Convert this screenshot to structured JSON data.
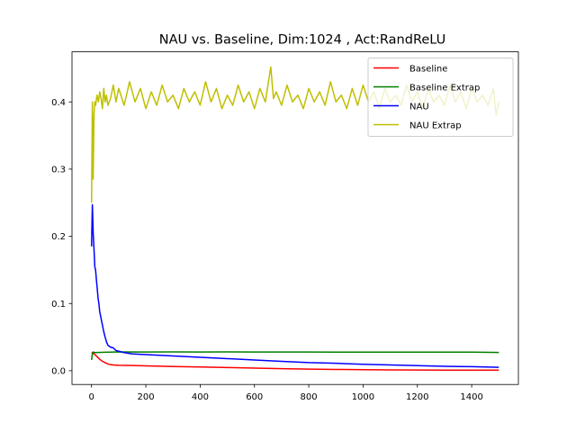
{
  "chart_data": {
    "type": "line",
    "title": "NAU vs. Baseline, Dim:1024 , Act:RandReLU",
    "xlabel": "",
    "ylabel": "",
    "xlim": [
      -72,
      1572
    ],
    "ylim": [
      -0.0205,
      0.4745
    ],
    "x_ticks": [
      0,
      200,
      400,
      600,
      800,
      1000,
      1200,
      1400
    ],
    "y_ticks": [
      0.0,
      0.1,
      0.2,
      0.3,
      0.4
    ],
    "x_tick_labels": [
      "0",
      "200",
      "400",
      "600",
      "800",
      "1000",
      "1200",
      "1400"
    ],
    "y_tick_labels": [
      "0.0",
      "0.1",
      "0.2",
      "0.3",
      "0.4"
    ],
    "grid": false,
    "legend_position": "upper right",
    "series": [
      {
        "name": "Baseline",
        "color": "#ff0000",
        "points": [
          [
            0,
            0.027
          ],
          [
            5,
            0.026
          ],
          [
            10,
            0.025
          ],
          [
            20,
            0.021
          ],
          [
            30,
            0.017
          ],
          [
            40,
            0.014
          ],
          [
            50,
            0.012
          ],
          [
            60,
            0.01
          ],
          [
            70,
            0.009
          ],
          [
            80,
            0.0085
          ],
          [
            100,
            0.008
          ],
          [
            150,
            0.0078
          ],
          [
            200,
            0.0073
          ],
          [
            300,
            0.0063
          ],
          [
            400,
            0.0055
          ],
          [
            500,
            0.0047
          ],
          [
            600,
            0.0038
          ],
          [
            700,
            0.003
          ],
          [
            800,
            0.0024
          ],
          [
            900,
            0.0019
          ],
          [
            1000,
            0.0015
          ],
          [
            1100,
            0.0012
          ],
          [
            1200,
            0.001
          ],
          [
            1300,
            0.0009
          ],
          [
            1400,
            0.0008
          ],
          [
            1500,
            0.0008
          ]
        ]
      },
      {
        "name": "Baseline Extrap",
        "color": "#008000",
        "points": [
          [
            0,
            0.016
          ],
          [
            3,
            0.025
          ],
          [
            6,
            0.028
          ],
          [
            10,
            0.027
          ],
          [
            50,
            0.0275
          ],
          [
            100,
            0.028
          ],
          [
            200,
            0.0278
          ],
          [
            300,
            0.028
          ],
          [
            400,
            0.0278
          ],
          [
            500,
            0.028
          ],
          [
            600,
            0.0278
          ],
          [
            700,
            0.0278
          ],
          [
            800,
            0.0278
          ],
          [
            900,
            0.0277
          ],
          [
            1000,
            0.0276
          ],
          [
            1100,
            0.0276
          ],
          [
            1200,
            0.0276
          ],
          [
            1300,
            0.0276
          ],
          [
            1400,
            0.0276
          ],
          [
            1500,
            0.0272
          ]
        ]
      },
      {
        "name": "NAU",
        "color": "#0000ff",
        "points": [
          [
            0,
            0.185
          ],
          [
            3,
            0.247
          ],
          [
            6,
            0.205
          ],
          [
            9,
            0.181
          ],
          [
            12,
            0.155
          ],
          [
            15,
            0.149
          ],
          [
            18,
            0.135
          ],
          [
            21,
            0.122
          ],
          [
            24,
            0.108
          ],
          [
            27,
            0.1
          ],
          [
            30,
            0.088
          ],
          [
            35,
            0.078
          ],
          [
            40,
            0.068
          ],
          [
            45,
            0.058
          ],
          [
            50,
            0.05
          ],
          [
            55,
            0.043
          ],
          [
            60,
            0.038
          ],
          [
            70,
            0.035
          ],
          [
            80,
            0.034
          ],
          [
            90,
            0.03
          ],
          [
            100,
            0.029
          ],
          [
            120,
            0.027
          ],
          [
            150,
            0.025
          ],
          [
            200,
            0.024
          ],
          [
            300,
            0.022
          ],
          [
            400,
            0.02
          ],
          [
            500,
            0.018
          ],
          [
            600,
            0.016
          ],
          [
            700,
            0.014
          ],
          [
            800,
            0.012
          ],
          [
            900,
            0.011
          ],
          [
            1000,
            0.0095
          ],
          [
            1100,
            0.0085
          ],
          [
            1200,
            0.0075
          ],
          [
            1300,
            0.0065
          ],
          [
            1400,
            0.006
          ],
          [
            1500,
            0.005
          ]
        ]
      },
      {
        "name": "NAU Extrap",
        "color": "#bfbf00",
        "points": [
          [
            0,
            0.25
          ],
          [
            3,
            0.4
          ],
          [
            6,
            0.285
          ],
          [
            9,
            0.38
          ],
          [
            12,
            0.4
          ],
          [
            15,
            0.395
          ],
          [
            20,
            0.41
          ],
          [
            25,
            0.4
          ],
          [
            30,
            0.415
          ],
          [
            35,
            0.405
          ],
          [
            40,
            0.39
          ],
          [
            45,
            0.42
          ],
          [
            50,
            0.4
          ],
          [
            55,
            0.41
          ],
          [
            60,
            0.395
          ],
          [
            70,
            0.405
          ],
          [
            80,
            0.425
          ],
          [
            90,
            0.4
          ],
          [
            100,
            0.42
          ],
          [
            120,
            0.395
          ],
          [
            140,
            0.43
          ],
          [
            160,
            0.4
          ],
          [
            180,
            0.42
          ],
          [
            200,
            0.39
          ],
          [
            220,
            0.415
          ],
          [
            240,
            0.395
          ],
          [
            260,
            0.425
          ],
          [
            280,
            0.4
          ],
          [
            300,
            0.41
          ],
          [
            320,
            0.39
          ],
          [
            340,
            0.42
          ],
          [
            360,
            0.4
          ],
          [
            380,
            0.415
          ],
          [
            400,
            0.395
          ],
          [
            420,
            0.43
          ],
          [
            440,
            0.4
          ],
          [
            460,
            0.42
          ],
          [
            480,
            0.39
          ],
          [
            500,
            0.41
          ],
          [
            520,
            0.395
          ],
          [
            540,
            0.425
          ],
          [
            560,
            0.4
          ],
          [
            580,
            0.415
          ],
          [
            600,
            0.39
          ],
          [
            620,
            0.42
          ],
          [
            640,
            0.4
          ],
          [
            660,
            0.452
          ],
          [
            670,
            0.405
          ],
          [
            680,
            0.415
          ],
          [
            700,
            0.395
          ],
          [
            720,
            0.425
          ],
          [
            740,
            0.4
          ],
          [
            760,
            0.41
          ],
          [
            780,
            0.39
          ],
          [
            800,
            0.42
          ],
          [
            820,
            0.4
          ],
          [
            840,
            0.415
          ],
          [
            860,
            0.395
          ],
          [
            880,
            0.43
          ],
          [
            900,
            0.4
          ],
          [
            920,
            0.41
          ],
          [
            940,
            0.39
          ],
          [
            960,
            0.42
          ],
          [
            980,
            0.395
          ],
          [
            1000,
            0.425
          ],
          [
            1020,
            0.4
          ],
          [
            1040,
            0.415
          ],
          [
            1060,
            0.39
          ],
          [
            1080,
            0.42
          ],
          [
            1100,
            0.4
          ],
          [
            1120,
            0.41
          ],
          [
            1140,
            0.395
          ],
          [
            1160,
            0.425
          ],
          [
            1180,
            0.4
          ],
          [
            1200,
            0.415
          ],
          [
            1220,
            0.39
          ],
          [
            1240,
            0.42
          ],
          [
            1260,
            0.4
          ],
          [
            1280,
            0.41
          ],
          [
            1300,
            0.395
          ],
          [
            1320,
            0.425
          ],
          [
            1340,
            0.4
          ],
          [
            1360,
            0.415
          ],
          [
            1380,
            0.39
          ],
          [
            1400,
            0.42
          ],
          [
            1420,
            0.4
          ],
          [
            1440,
            0.41
          ],
          [
            1460,
            0.395
          ],
          [
            1480,
            0.42
          ],
          [
            1490,
            0.38
          ],
          [
            1500,
            0.4
          ]
        ]
      }
    ]
  }
}
